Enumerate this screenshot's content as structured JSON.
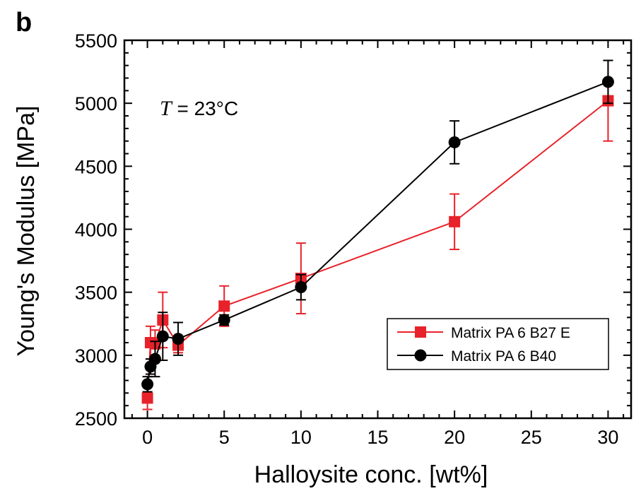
{
  "panel_letter": "b",
  "annotation": {
    "symbol": "T",
    "text": " = 23°C"
  },
  "colors": {
    "red": "#e8222a",
    "black": "#000000"
  },
  "chart_data": {
    "type": "scatter",
    "xlabel": "Halloysite conc. [wt%]",
    "ylabel": "Young's Modulus [MPa]",
    "xlim": [
      -1.5,
      31.5
    ],
    "ylim": [
      2500,
      5500
    ],
    "xticks": [
      0,
      5,
      10,
      15,
      20,
      25,
      30
    ],
    "yticks": [
      2500,
      3000,
      3500,
      4000,
      4500,
      5000,
      5500
    ],
    "legend_position": "lower-right",
    "series": [
      {
        "name": "Matrix PA 6 B27 E",
        "color": "#e8222a",
        "marker": "square",
        "points": [
          {
            "x": 0,
            "y": 2660,
            "err": 90
          },
          {
            "x": 0.2,
            "y": 3100,
            "err": 130
          },
          {
            "x": 0.5,
            "y": 3090,
            "err": 110
          },
          {
            "x": 1,
            "y": 3280,
            "err": 220
          },
          {
            "x": 2,
            "y": 3080,
            "err": 60
          },
          {
            "x": 5,
            "y": 3390,
            "err": 160
          },
          {
            "x": 10,
            "y": 3610,
            "err": 280
          },
          {
            "x": 20,
            "y": 4060,
            "err": 220
          },
          {
            "x": 30,
            "y": 5020,
            "err": 320
          }
        ]
      },
      {
        "name": "Matrix PA 6 B40",
        "color": "#000000",
        "marker": "circle",
        "points": [
          {
            "x": 0,
            "y": 2770,
            "err": 60
          },
          {
            "x": 0.2,
            "y": 2910,
            "err": 60
          },
          {
            "x": 0.5,
            "y": 2970,
            "err": 140
          },
          {
            "x": 1,
            "y": 3150,
            "err": 190
          },
          {
            "x": 2,
            "y": 3130,
            "err": 130
          },
          {
            "x": 5,
            "y": 3280,
            "err": 40
          },
          {
            "x": 10,
            "y": 3540,
            "err": 100
          },
          {
            "x": 20,
            "y": 4690,
            "err": 170
          },
          {
            "x": 30,
            "y": 5170,
            "err": 170
          }
        ]
      }
    ]
  }
}
